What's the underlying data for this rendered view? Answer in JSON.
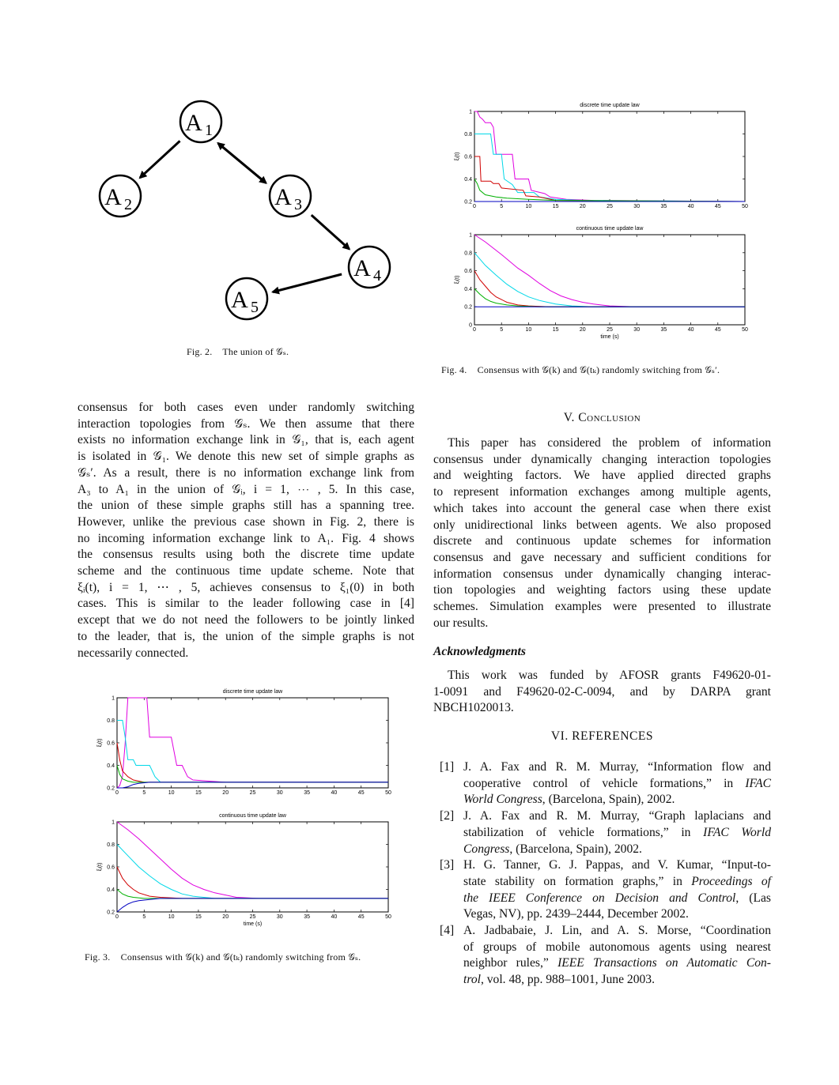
{
  "fig2": {
    "nodes": [
      {
        "id": "A1",
        "base": "A",
        "sub": "1"
      },
      {
        "id": "A2",
        "base": "A",
        "sub": "2"
      },
      {
        "id": "A3",
        "base": "A",
        "sub": "3"
      },
      {
        "id": "A4",
        "base": "A",
        "sub": "4"
      },
      {
        "id": "A5",
        "base": "A",
        "sub": "5"
      }
    ],
    "edges": [
      [
        "A1",
        "A2"
      ],
      [
        "A1",
        "A3"
      ],
      [
        "A3",
        "A1"
      ],
      [
        "A3",
        "A4"
      ],
      [
        "A4",
        "A5"
      ]
    ],
    "caption_label": "Fig. 2.",
    "caption_text": "The union of 𝒢ₛ."
  },
  "left_paragraph": [
    "consensus for both cases even under randomly switching",
    "interaction topologies from 𝒢ₛ. We then assume that there",
    "exists no information exchange link in 𝒢₁, that is, each agent",
    "is isolated in 𝒢₁. We denote this new set of simple graphs as",
    "𝒢ₛ′. As a result, there is no information exchange link from",
    "A₃ to A₁ in the union of 𝒢ᵢ, i = 1, ⋯ , 5. In this case,",
    "the union of these simple graphs still has a spanning tree.",
    "However, unlike the previous case shown in Fig. 2, there is",
    "no incoming information exchange link to A₁. Fig. 4 shows",
    "the consensus results using both the discrete time update",
    "scheme and the continuous time update scheme. Note that",
    "ξᵢ(t), i = 1, ⋯ , 5, achieves consensus to ξ₁(0) in both",
    "cases. This is similar to the leader following case in [4]",
    "except that we do not need the followers to be jointly linked",
    "to the leader, that is, the union of the simple graphs is not",
    "necessarily connected."
  ],
  "fig3": {
    "caption_label": "Fig. 3.",
    "caption_text": "Consensus with 𝒢(k) and 𝒢(tₖ) randomly switching from 𝒢ₛ.",
    "panels": [
      {
        "title": "discrete time update law",
        "ylabel": "ξᵢ(t)",
        "xlabel": ""
      },
      {
        "title": "continuous time update law",
        "ylabel": "ξᵢ(t)",
        "xlabel": "time (s)"
      }
    ]
  },
  "fig4": {
    "caption_label": "Fig. 4.",
    "caption_text": "Consensus with 𝒢(k) and 𝒢(tₖ) randomly switching from 𝒢ₛ′.",
    "panels": [
      {
        "title": "discrete time update law",
        "ylabel": "ξᵢ(t)",
        "xlabel": ""
      },
      {
        "title": "continuous time update law",
        "ylabel": "ξᵢ(t)",
        "xlabel": "time (s)"
      }
    ]
  },
  "conclusion": {
    "heading": "V. Conclusion",
    "text": [
      "This paper has considered the problem of information",
      "consensus under dynamically changing interaction topologies",
      "and weighting factors. We have applied directed graphs",
      "to represent information exchanges among multiple agents,",
      "which takes into account the general case when there exist",
      "only unidirectional links between agents. We also proposed",
      "discrete and continuous update schemes for information",
      "consensus and gave necessary and sufficient conditions for",
      "information consensus under dynamically changing interac-",
      "tion topologies and weighting factors using these update",
      "schemes. Simulation examples were presented to illustrate",
      "our results."
    ]
  },
  "acknowledgments": {
    "heading": "Acknowledgments",
    "text": [
      "This work was funded by AFOSR grants F49620-01-",
      "1-0091 and F49620-02-C-0094, and by DARPA grant",
      "NBCH1020013."
    ]
  },
  "references": {
    "heading": "VI. REFERENCES",
    "items": [
      {
        "num": "[1]",
        "lines": [
          {
            "t": "J. A. Fax and R. M. Murray, “Information flow and"
          },
          {
            "t": "cooperative control of vehicle formations,” in ",
            "i": "IFAC"
          },
          {
            "i": "World Congress",
            "t": ", (Barcelona, Spain), 2002."
          }
        ]
      },
      {
        "num": "[2]",
        "lines": [
          {
            "t": "J. A. Fax and R. M. Murray, “Graph laplacians and"
          },
          {
            "t": "stabilization of vehicle formations,” in ",
            "i": "IFAC World"
          },
          {
            "i": "Congress",
            "t": ", (Barcelona, Spain), 2002."
          }
        ]
      },
      {
        "num": "[3]",
        "lines": [
          {
            "t": "H. G. Tanner, G. J. Pappas, and V. Kumar, “Input-to-"
          },
          {
            "t": "state stability on formation graphs,” in ",
            "i": "Proceedings of"
          },
          {
            "i": "the IEEE Conference on Decision and Control",
            "t": ", (Las"
          },
          {
            "t": "Vegas, NV), pp. 2439–2444, December 2002."
          }
        ]
      },
      {
        "num": "[4]",
        "lines": [
          {
            "t": "A. Jadbabaie, J. Lin, and A. S. Morse, “Coordination"
          },
          {
            "t": "of groups of mobile autonomous agents using nearest"
          },
          {
            "t": "neighbor rules,” ",
            "i": "IEEE Transactions on Automatic Con-"
          },
          {
            "i": "trol",
            "t": ", vol. 48, pp. 988–1001, June 2003."
          }
        ]
      }
    ]
  },
  "chart_data": [
    {
      "type": "line",
      "figure": "Fig. 4",
      "title": "discrete time update law",
      "xlabel": "",
      "ylabel": "ξᵢ(t)",
      "xlim": [
        0,
        50
      ],
      "ylim": [
        0.2,
        1
      ],
      "xticks": [
        0,
        5,
        10,
        15,
        20,
        25,
        30,
        35,
        40,
        45,
        50
      ],
      "yticks": [
        0.2,
        0.4,
        0.6,
        0.8,
        1
      ],
      "series": [
        {
          "color": "#e000e0",
          "x": [
            0,
            0.5,
            1,
            1.5,
            2,
            3,
            3.5,
            4,
            6,
            7,
            7.5,
            10,
            10.5,
            13,
            14,
            17,
            22,
            50
          ],
          "y": [
            1,
            1,
            0.95,
            0.93,
            0.9,
            0.9,
            0.86,
            0.62,
            0.62,
            0.62,
            0.4,
            0.4,
            0.3,
            0.27,
            0.24,
            0.22,
            0.21,
            0.2
          ]
        },
        {
          "color": "#00d8e8",
          "x": [
            0,
            3,
            3.5,
            5,
            5.5,
            7,
            8,
            11,
            12,
            15,
            20,
            50
          ],
          "y": [
            0.8,
            0.8,
            0.62,
            0.62,
            0.4,
            0.35,
            0.28,
            0.28,
            0.24,
            0.22,
            0.21,
            0.2
          ]
        },
        {
          "color": "#d00000",
          "x": [
            0,
            1,
            1.2,
            3,
            3.5,
            4.5,
            5,
            9,
            9.5,
            12,
            15,
            50
          ],
          "y": [
            0.6,
            0.6,
            0.38,
            0.38,
            0.36,
            0.36,
            0.32,
            0.3,
            0.25,
            0.24,
            0.21,
            0.2
          ]
        },
        {
          "color": "#00b000",
          "x": [
            0,
            0.5,
            1,
            2,
            4,
            6,
            10,
            15,
            50
          ],
          "y": [
            0.4,
            0.36,
            0.3,
            0.26,
            0.24,
            0.23,
            0.22,
            0.21,
            0.2
          ]
        },
        {
          "color": "#0000c0",
          "x": [
            0,
            50
          ],
          "y": [
            0.2,
            0.2
          ]
        }
      ]
    },
    {
      "type": "line",
      "figure": "Fig. 4",
      "title": "continuous time update law",
      "xlabel": "time (s)",
      "ylabel": "ξᵢ(t)",
      "xlim": [
        0,
        50
      ],
      "ylim": [
        0,
        1
      ],
      "xticks": [
        0,
        5,
        10,
        15,
        20,
        25,
        30,
        35,
        40,
        45,
        50
      ],
      "yticks": [
        0,
        0.2,
        0.4,
        0.6,
        0.8,
        1
      ],
      "series": [
        {
          "color": "#e000e0",
          "x": [
            0,
            2,
            5,
            8,
            10,
            12,
            14,
            16,
            18,
            20,
            22,
            25,
            30,
            50
          ],
          "y": [
            1,
            0.92,
            0.78,
            0.63,
            0.55,
            0.46,
            0.38,
            0.32,
            0.28,
            0.25,
            0.23,
            0.21,
            0.2,
            0.2
          ]
        },
        {
          "color": "#00d8e8",
          "x": [
            0,
            2,
            4,
            6,
            8,
            10,
            12,
            15,
            18,
            22,
            50
          ],
          "y": [
            0.8,
            0.66,
            0.55,
            0.45,
            0.37,
            0.31,
            0.27,
            0.23,
            0.21,
            0.2,
            0.2
          ]
        },
        {
          "color": "#d00000",
          "x": [
            0,
            1,
            2,
            3,
            4,
            5,
            6,
            8,
            10,
            14,
            50
          ],
          "y": [
            0.6,
            0.5,
            0.43,
            0.36,
            0.31,
            0.28,
            0.25,
            0.22,
            0.21,
            0.2,
            0.2
          ]
        },
        {
          "color": "#00b000",
          "x": [
            0,
            1,
            2,
            3,
            4,
            6,
            8,
            12,
            50
          ],
          "y": [
            0.4,
            0.34,
            0.29,
            0.26,
            0.24,
            0.22,
            0.21,
            0.2,
            0.2
          ]
        },
        {
          "color": "#0000c0",
          "x": [
            0,
            50
          ],
          "y": [
            0.2,
            0.2
          ]
        }
      ]
    },
    {
      "type": "line",
      "figure": "Fig. 3",
      "title": "discrete time update law",
      "xlabel": "",
      "ylabel": "ξᵢ(t)",
      "xlim": [
        0,
        50
      ],
      "ylim": [
        0.2,
        1
      ],
      "xticks": [
        0,
        5,
        10,
        15,
        20,
        25,
        30,
        35,
        40,
        45,
        50
      ],
      "yticks": [
        0.2,
        0.4,
        0.6,
        0.8,
        1
      ],
      "series": [
        {
          "color": "#e000e0",
          "x": [
            0,
            0.5,
            1,
            1.5,
            2,
            3,
            4,
            5.5,
            6,
            10,
            11,
            12,
            13,
            14,
            17,
            20,
            50
          ],
          "y": [
            0.2,
            0.22,
            0.3,
            0.6,
            1,
            1,
            1,
            1,
            0.65,
            0.65,
            0.4,
            0.4,
            0.3,
            0.27,
            0.26,
            0.25,
            0.25
          ]
        },
        {
          "color": "#00d8e8",
          "x": [
            0,
            1,
            1.5,
            2,
            3,
            3.5,
            5,
            6,
            7,
            8,
            10,
            50
          ],
          "y": [
            0.8,
            0.8,
            0.65,
            0.45,
            0.45,
            0.4,
            0.4,
            0.4,
            0.3,
            0.25,
            0.25,
            0.25
          ]
        },
        {
          "color": "#d00000",
          "x": [
            0,
            0.5,
            1,
            2,
            3,
            5,
            50
          ],
          "y": [
            0.6,
            0.45,
            0.35,
            0.3,
            0.27,
            0.25,
            0.25
          ]
        },
        {
          "color": "#00b000",
          "x": [
            0,
            0.5,
            1,
            2,
            3,
            5,
            50
          ],
          "y": [
            0.4,
            0.32,
            0.28,
            0.26,
            0.25,
            0.25,
            0.25
          ]
        },
        {
          "color": "#0000c0",
          "x": [
            0,
            1,
            2,
            3,
            4,
            6,
            50
          ],
          "y": [
            0.2,
            0.2,
            0.21,
            0.23,
            0.24,
            0.25,
            0.25
          ]
        }
      ]
    },
    {
      "type": "line",
      "figure": "Fig. 3",
      "title": "continuous time update law",
      "xlabel": "time (s)",
      "ylabel": "ξᵢ(t)",
      "xlim": [
        0,
        50
      ],
      "ylim": [
        0.2,
        1
      ],
      "xticks": [
        0,
        5,
        10,
        15,
        20,
        25,
        30,
        35,
        40,
        45,
        50
      ],
      "yticks": [
        0.2,
        0.4,
        0.6,
        0.8,
        1
      ],
      "series": [
        {
          "color": "#e000e0",
          "x": [
            0,
            2,
            4,
            6,
            8,
            10,
            12,
            14,
            16,
            18,
            20,
            22,
            26,
            30,
            50
          ],
          "y": [
            1,
            0.93,
            0.85,
            0.76,
            0.67,
            0.58,
            0.5,
            0.44,
            0.4,
            0.37,
            0.35,
            0.33,
            0.32,
            0.32,
            0.32
          ]
        },
        {
          "color": "#00d8e8",
          "x": [
            0,
            2,
            4,
            6,
            8,
            10,
            12,
            14,
            18,
            50
          ],
          "y": [
            0.8,
            0.7,
            0.6,
            0.52,
            0.45,
            0.4,
            0.36,
            0.34,
            0.32,
            0.32
          ]
        },
        {
          "color": "#d00000",
          "x": [
            0,
            1,
            2,
            3,
            4,
            6,
            8,
            12,
            50
          ],
          "y": [
            0.6,
            0.5,
            0.44,
            0.4,
            0.37,
            0.34,
            0.33,
            0.32,
            0.32
          ]
        },
        {
          "color": "#00b000",
          "x": [
            0,
            1,
            2,
            3,
            5,
            8,
            50
          ],
          "y": [
            0.4,
            0.36,
            0.34,
            0.33,
            0.32,
            0.32,
            0.32
          ]
        },
        {
          "color": "#0000c0",
          "x": [
            0,
            1,
            2,
            3,
            4,
            6,
            8,
            50
          ],
          "y": [
            0.2,
            0.24,
            0.27,
            0.29,
            0.3,
            0.31,
            0.32,
            0.32
          ]
        }
      ]
    }
  ]
}
